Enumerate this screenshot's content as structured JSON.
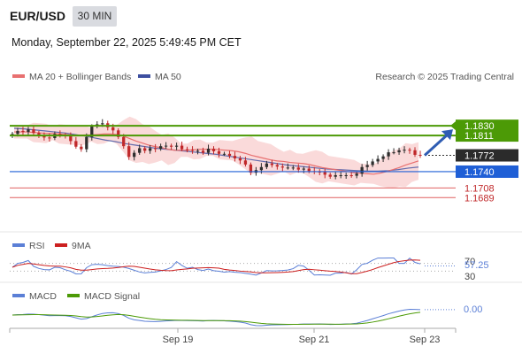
{
  "header": {
    "symbol": "EUR/USD",
    "timeframe": "30 MIN",
    "datetime": "Monday, September 22, 2025 5:49:45 PM CET"
  },
  "legend": {
    "ma20": "MA 20 + Bollinger Bands",
    "ma50": "MA 50",
    "copyright": "Research © 2025 Trading Central",
    "rsi": "RSI",
    "rsi_ma": "9MA",
    "macd": "MACD",
    "macd_signal": "MACD Signal"
  },
  "colors": {
    "up": "#2e2e2e",
    "down": "#c0282a",
    "ma20": "#e87070",
    "ma50": "#3d4fa0",
    "band": "#f9d4d4",
    "green": "#4c9a06",
    "blue": "#1f5fd6",
    "red": "#e06060",
    "arrow": "#2f5db3"
  },
  "chart_data": {
    "type": "candlestick",
    "ylim": [
      1.166,
      1.1865
    ],
    "levels": [
      {
        "label": "1.1830",
        "value": 1.183,
        "kind": "resistance"
      },
      {
        "label": "1.1811",
        "value": 1.1811,
        "kind": "resistance"
      },
      {
        "label": "1.1772",
        "value": 1.1772,
        "kind": "last"
      },
      {
        "label": "1.1740",
        "value": 1.174,
        "kind": "pivot"
      },
      {
        "label": "1.1708",
        "value": 1.1708,
        "kind": "support"
      },
      {
        "label": "1.1689",
        "value": 1.1689,
        "kind": "support"
      }
    ],
    "closes": [
      1.1814,
      1.182,
      1.1818,
      1.1823,
      1.1816,
      1.1811,
      1.1807,
      1.1806,
      1.1814,
      1.1812,
      1.1811,
      1.18,
      1.1789,
      1.1784,
      1.1808,
      1.1829,
      1.1833,
      1.1835,
      1.1827,
      1.1821,
      1.1808,
      1.179,
      1.1769,
      1.1777,
      1.1786,
      1.1781,
      1.1786,
      1.1785,
      1.179,
      1.1791,
      1.1789,
      1.1791,
      1.1784,
      1.1783,
      1.1781,
      1.1781,
      1.1777,
      1.1785,
      1.178,
      1.1775,
      1.1775,
      1.1771,
      1.1766,
      1.1762,
      1.1754,
      1.1738,
      1.1743,
      1.1749,
      1.1756,
      1.1753,
      1.175,
      1.1748,
      1.1748,
      1.1748,
      1.1744,
      1.1746,
      1.1741,
      1.174,
      1.1739,
      1.1734,
      1.173,
      1.1733,
      1.1733,
      1.1733,
      1.1732,
      1.1736,
      1.1749,
      1.1753,
      1.176,
      1.1765,
      1.177,
      1.1778,
      1.1778,
      1.1782,
      1.1783,
      1.1782,
      1.1773,
      1.1772
    ],
    "ma20": [
      1.1818,
      1.1818,
      1.1818,
      1.1817,
      1.1816,
      1.1815,
      1.1815,
      1.1814,
      1.1813,
      1.1812,
      1.1811,
      1.1812,
      1.1812,
      1.1813,
      1.1814,
      1.1814,
      1.1813,
      1.181,
      1.1805,
      1.18,
      1.1796,
      1.1792,
      1.1789,
      1.1787,
      1.1784,
      1.1782,
      1.1782,
      1.1782,
      1.1783,
      1.1784,
      1.1784,
      1.1784,
      1.1783,
      1.1782,
      1.1781,
      1.1779,
      1.1776,
      1.1772,
      1.1769,
      1.1766,
      1.1763,
      1.1761,
      1.176,
      1.1758,
      1.1757,
      1.1756,
      1.1754,
      1.1751,
      1.1748,
      1.1746,
      1.1744,
      1.1742,
      1.174,
      1.1738,
      1.1737,
      1.1736,
      1.1735,
      1.1737,
      1.174,
      1.1744,
      1.1748,
      1.1753,
      1.1757,
      1.1761
    ],
    "ma50": [
      1.1825,
      1.1824,
      1.1822,
      1.182,
      1.1818,
      1.1816,
      1.1813,
      1.181,
      1.1806,
      1.1802,
      1.1799,
      1.1795,
      1.1792,
      1.1789,
      1.1786,
      1.1784,
      1.1782,
      1.178,
      1.1778,
      1.1776,
      1.1774,
      1.1771,
      1.1768,
      1.1765,
      1.1762,
      1.1759,
      1.1756,
      1.1753,
      1.1751,
      1.1749,
      1.1747,
      1.1745,
      1.1744,
      1.1743,
      1.1742,
      1.1741,
      1.1741,
      1.1742,
      1.1744,
      1.1747,
      1.1749
    ],
    "rsi": {
      "value_label": "57.25",
      "levels": [
        "70",
        "30"
      ],
      "ylim": [
        0,
        100
      ]
    },
    "macd": {
      "value_label": "0.00"
    },
    "x_labels": [
      "Sep 19",
      "Sep 21",
      "Sep 23"
    ]
  }
}
